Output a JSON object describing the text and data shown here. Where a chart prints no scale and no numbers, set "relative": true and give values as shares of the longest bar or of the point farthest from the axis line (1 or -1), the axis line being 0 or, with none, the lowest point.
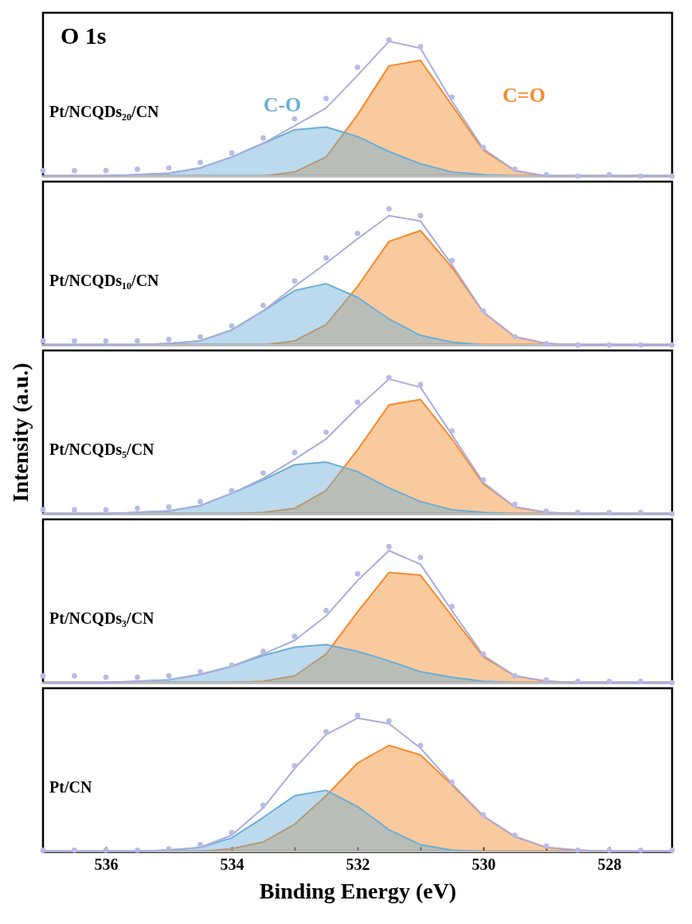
{
  "chart_data": [
    {
      "type": "line",
      "title": "O 1s",
      "annotations": [
        "Pt/NCQDs₂₀/CN"
      ],
      "relative": true,
      "xlim": [
        537,
        527
      ],
      "tick_labels": false,
      "x": [
        537,
        536.5,
        536,
        535.5,
        535,
        534.5,
        534,
        533.5,
        533,
        532.5,
        532,
        531.5,
        531,
        530.5,
        530,
        529.5,
        529,
        528.5,
        528,
        527.5,
        527
      ],
      "series": [
        {
          "color": "#bdbdbd",
          "values": [
            0,
            0,
            0,
            0,
            0,
            0,
            0,
            0,
            0,
            0,
            0,
            0,
            0,
            0,
            0,
            0,
            0,
            0,
            0,
            0,
            0
          ]
        },
        {
          "type": "area",
          "name": "C=O",
          "color": "#f58a2b",
          "values": [
            0,
            0,
            0,
            0,
            0,
            0,
            0,
            0,
            0.03,
            0.14,
            0.45,
            0.81,
            0.85,
            0.52,
            0.19,
            0.04,
            0,
            0,
            0,
            0,
            0
          ]
        },
        {
          "type": "area",
          "name": "C-O",
          "color": "#6aaed6",
          "values": [
            0,
            0,
            0,
            0.01,
            0.02,
            0.06,
            0.14,
            0.24,
            0.34,
            0.36,
            0.29,
            0.18,
            0.09,
            0.03,
            0.01,
            0,
            0,
            0,
            0,
            0,
            0
          ]
        },
        {
          "color": "#a9acdc",
          "values": [
            0,
            0,
            0,
            0.01,
            0.02,
            0.06,
            0.14,
            0.24,
            0.37,
            0.5,
            0.74,
            0.99,
            0.94,
            0.55,
            0.2,
            0.04,
            0,
            0,
            0,
            0,
            0
          ]
        },
        {
          "type": "scatter",
          "marker": "circle",
          "color": "#b7bbe6",
          "values": [
            0.04,
            0.04,
            0.04,
            0.05,
            0.06,
            0.1,
            0.17,
            0.28,
            0.42,
            0.57,
            0.8,
            1.0,
            0.95,
            0.58,
            0.21,
            0.05,
            0.01,
            0,
            0.01,
            0,
            0
          ]
        }
      ]
    },
    {
      "type": "line",
      "annotations": [
        "Pt/NCQDs₁₀/CN"
      ],
      "relative": true,
      "xlim": [
        537,
        527
      ],
      "tick_labels": false,
      "x": [
        537,
        536.5,
        536,
        535.5,
        535,
        534.5,
        534,
        533.5,
        533,
        532.5,
        532,
        531.5,
        531,
        530.5,
        530,
        529.5,
        529,
        528.5,
        528,
        527.5,
        527
      ],
      "series": [
        {
          "color": "#bdbdbd",
          "values": [
            0,
            0,
            0,
            0,
            0,
            0,
            0,
            0,
            0,
            0,
            0,
            0,
            0,
            0,
            0,
            0,
            0,
            0,
            0,
            0,
            0
          ]
        },
        {
          "type": "area",
          "color": "#f58a2b",
          "values": [
            0,
            0,
            0,
            0,
            0,
            0,
            0,
            0,
            0.03,
            0.15,
            0.43,
            0.76,
            0.84,
            0.57,
            0.24,
            0.06,
            0.01,
            0,
            0,
            0,
            0
          ]
        },
        {
          "type": "area",
          "color": "#6aaed6",
          "values": [
            0,
            0,
            0,
            0,
            0.01,
            0.03,
            0.11,
            0.25,
            0.4,
            0.45,
            0.35,
            0.19,
            0.07,
            0.02,
            0,
            0,
            0,
            0,
            0,
            0,
            0
          ]
        },
        {
          "color": "#a9acdc",
          "values": [
            0,
            0,
            0,
            0,
            0.01,
            0.03,
            0.11,
            0.25,
            0.43,
            0.6,
            0.78,
            0.95,
            0.91,
            0.59,
            0.24,
            0.06,
            0.01,
            0,
            0,
            0,
            0
          ]
        },
        {
          "type": "scatter",
          "marker": "circle",
          "color": "#b7bbe6",
          "values": [
            0.03,
            0.03,
            0.03,
            0.03,
            0.04,
            0.06,
            0.14,
            0.29,
            0.47,
            0.64,
            0.82,
            1.0,
            0.95,
            0.62,
            0.25,
            0.06,
            0.01,
            0,
            0,
            0,
            0
          ]
        }
      ]
    },
    {
      "type": "line",
      "ylabel": "Intensity (a.u.)",
      "annotations": [
        "Pt/NCQDs₅/CN"
      ],
      "relative": true,
      "xlim": [
        537,
        527
      ],
      "tick_labels": false,
      "x": [
        537,
        536.5,
        536,
        535.5,
        535,
        534.5,
        534,
        533.5,
        533,
        532.5,
        532,
        531.5,
        531,
        530.5,
        530,
        529.5,
        529,
        528.5,
        528,
        527.5,
        527
      ],
      "series": [
        {
          "color": "#bdbdbd",
          "values": [
            0,
            0,
            0,
            0,
            0,
            0,
            0,
            0,
            0,
            0,
            0,
            0,
            0,
            0,
            0,
            0,
            0,
            0,
            0,
            0,
            0
          ]
        },
        {
          "type": "area",
          "color": "#f58a2b",
          "values": [
            0,
            0,
            0,
            0,
            0,
            0,
            0,
            0.01,
            0.04,
            0.17,
            0.47,
            0.8,
            0.84,
            0.55,
            0.22,
            0.05,
            0.01,
            0,
            0,
            0,
            0
          ]
        },
        {
          "type": "area",
          "color": "#6aaed6",
          "values": [
            0,
            0,
            0,
            0.01,
            0.02,
            0.06,
            0.15,
            0.25,
            0.36,
            0.38,
            0.31,
            0.19,
            0.09,
            0.03,
            0.01,
            0,
            0,
            0,
            0,
            0,
            0
          ]
        },
        {
          "color": "#a9acdc",
          "values": [
            0,
            0,
            0,
            0.01,
            0.02,
            0.06,
            0.15,
            0.26,
            0.4,
            0.55,
            0.78,
            0.99,
            0.93,
            0.58,
            0.23,
            0.05,
            0.01,
            0,
            0,
            0,
            0
          ]
        },
        {
          "type": "scatter",
          "marker": "circle",
          "color": "#b7bbe6",
          "values": [
            0.03,
            0.03,
            0.03,
            0.04,
            0.05,
            0.09,
            0.17,
            0.3,
            0.45,
            0.6,
            0.82,
            1.0,
            0.95,
            0.61,
            0.25,
            0.07,
            0.02,
            0.01,
            0.01,
            0.01,
            0
          ]
        }
      ]
    },
    {
      "type": "line",
      "annotations": [
        "Pt/NCQDs₃/CN"
      ],
      "relative": true,
      "xlim": [
        537,
        527
      ],
      "tick_labels": false,
      "x": [
        537,
        536.5,
        536,
        535.5,
        535,
        534.5,
        534,
        533.5,
        533,
        532.5,
        532,
        531.5,
        531,
        530.5,
        530,
        529.5,
        529,
        528.5,
        528,
        527.5,
        527
      ],
      "series": [
        {
          "color": "#bdbdbd",
          "values": [
            0,
            0,
            0,
            0,
            0,
            0,
            0,
            0,
            0,
            0,
            0,
            0,
            0,
            0,
            0,
            0,
            0,
            0,
            0,
            0,
            0
          ]
        },
        {
          "type": "area",
          "color": "#f58a2b",
          "values": [
            0,
            0,
            0,
            0,
            0,
            0,
            0,
            0.01,
            0.05,
            0.21,
            0.52,
            0.81,
            0.79,
            0.49,
            0.19,
            0.05,
            0.01,
            0,
            0,
            0,
            0
          ]
        },
        {
          "type": "area",
          "color": "#6aaed6",
          "values": [
            0,
            0,
            0,
            0.01,
            0.02,
            0.06,
            0.12,
            0.2,
            0.26,
            0.28,
            0.23,
            0.16,
            0.08,
            0.04,
            0.01,
            0,
            0,
            0,
            0,
            0,
            0
          ]
        },
        {
          "color": "#a9acdc",
          "values": [
            0,
            0,
            0,
            0.01,
            0.02,
            0.06,
            0.12,
            0.21,
            0.31,
            0.49,
            0.75,
            0.97,
            0.87,
            0.53,
            0.2,
            0.05,
            0.01,
            0,
            0,
            0,
            0
          ]
        },
        {
          "type": "scatter",
          "marker": "circle",
          "color": "#b7bbe6",
          "values": [
            0.05,
            0.05,
            0.04,
            0.04,
            0.05,
            0.08,
            0.13,
            0.23,
            0.34,
            0.53,
            0.8,
            1.0,
            0.92,
            0.56,
            0.21,
            0.05,
            0.02,
            0.01,
            0.01,
            0.01,
            0
          ]
        }
      ]
    },
    {
      "type": "line",
      "xlabel": "Binding Energy (eV)",
      "annotations": [
        "Pt/CN"
      ],
      "relative": true,
      "xlim": [
        537,
        527
      ],
      "tick_labels": "x",
      "xticks": [
        536,
        {
          "value": 535,
          "label": null
        },
        534,
        {
          "value": 533,
          "label": null
        },
        532,
        {
          "value": 531,
          "label": null
        },
        530,
        {
          "value": 529,
          "label": null
        },
        528
      ],
      "x": [
        537,
        536.5,
        536,
        535.5,
        535,
        534.5,
        534,
        533.5,
        533,
        532.5,
        532,
        531.5,
        531,
        530.5,
        530,
        529.5,
        529,
        528.5,
        528,
        527.5,
        527
      ],
      "series": [
        {
          "color": "#bdbdbd",
          "values": [
            0,
            0,
            0,
            0,
            0,
            0,
            0,
            0,
            0,
            0,
            0,
            0,
            0,
            0,
            0,
            0,
            0,
            0,
            0,
            0,
            0
          ]
        },
        {
          "type": "area",
          "color": "#f58a2b",
          "values": [
            0,
            0,
            0,
            0,
            0,
            0,
            0.02,
            0.07,
            0.2,
            0.41,
            0.65,
            0.78,
            0.71,
            0.49,
            0.26,
            0.11,
            0.03,
            0.01,
            0,
            0,
            0
          ]
        },
        {
          "type": "area",
          "color": "#6aaed6",
          "values": [
            0,
            0,
            0,
            0,
            0.01,
            0.03,
            0.1,
            0.25,
            0.41,
            0.45,
            0.33,
            0.16,
            0.05,
            0.01,
            0,
            0,
            0,
            0,
            0,
            0,
            0
          ]
        },
        {
          "color": "#a9acdc",
          "values": [
            0,
            0,
            0,
            0,
            0.01,
            0.03,
            0.12,
            0.32,
            0.61,
            0.86,
            0.98,
            0.94,
            0.76,
            0.5,
            0.26,
            0.11,
            0.03,
            0.01,
            0,
            0,
            0
          ]
        },
        {
          "type": "scatter",
          "marker": "circle",
          "color": "#b7bbe6",
          "values": [
            0.01,
            0.01,
            0.01,
            0.01,
            0.02,
            0.05,
            0.14,
            0.34,
            0.63,
            0.88,
            1.0,
            0.96,
            0.78,
            0.51,
            0.27,
            0.12,
            0.04,
            0.01,
            0.01,
            0.01,
            0.01
          ]
        }
      ]
    }
  ]
}
